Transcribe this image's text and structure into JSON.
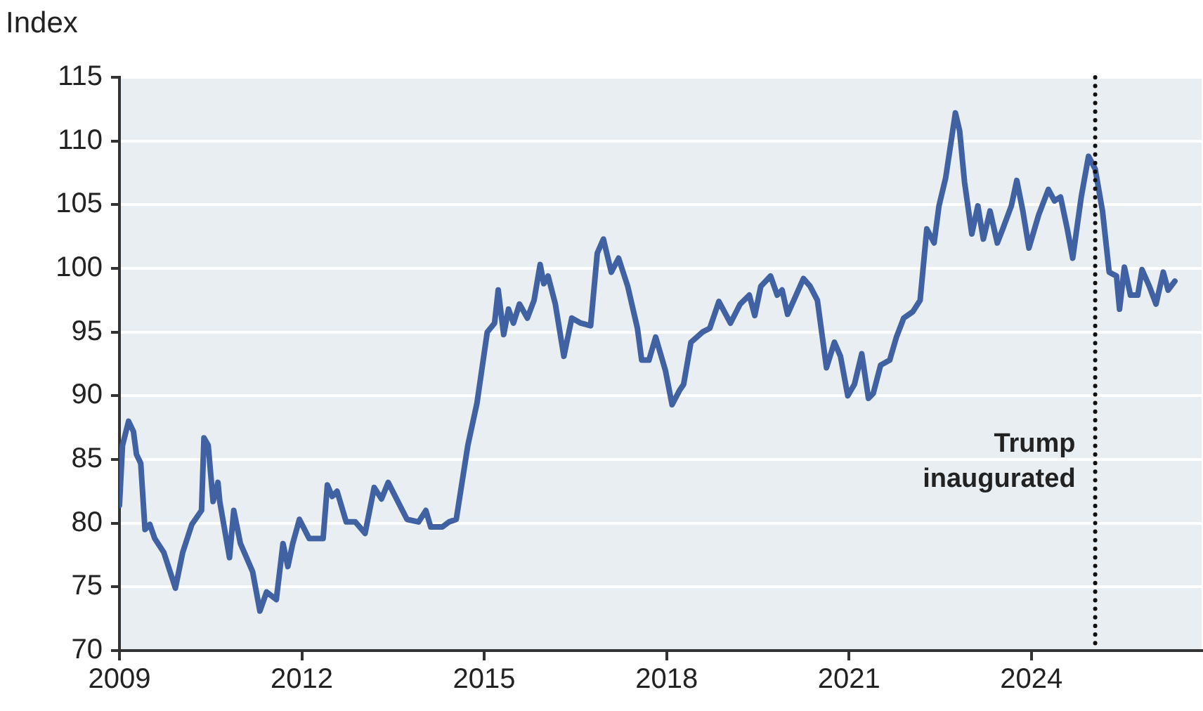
{
  "chart_data": {
    "type": "line",
    "ylabel": "Index",
    "series": [
      {
        "color": "#4062a3",
        "x": [
          2009.0,
          2009.05,
          2009.15,
          2009.23,
          2009.28,
          2009.35,
          2009.42,
          2009.5,
          2009.58,
          2009.73,
          2009.88,
          2009.92,
          2010.04,
          2010.19,
          2010.35,
          2010.39,
          2010.46,
          2010.54,
          2010.62,
          2010.65,
          2010.81,
          2010.88,
          2010.99,
          2011.19,
          2011.31,
          2011.42,
          2011.58,
          2011.69,
          2011.77,
          2011.85,
          2011.96,
          2012.12,
          2012.35,
          2012.42,
          2012.5,
          2012.58,
          2012.73,
          2012.88,
          2013.04,
          2013.19,
          2013.31,
          2013.42,
          2013.58,
          2013.73,
          2013.92,
          2014.04,
          2014.12,
          2014.31,
          2014.42,
          2014.54,
          2014.73,
          2014.88,
          2015.05,
          2015.17,
          2015.23,
          2015.32,
          2015.4,
          2015.48,
          2015.58,
          2015.71,
          2015.82,
          2015.92,
          2015.98,
          2016.05,
          2016.17,
          2016.31,
          2016.44,
          2016.59,
          2016.75,
          2016.86,
          2016.96,
          2017.09,
          2017.21,
          2017.36,
          2017.52,
          2017.59,
          2017.71,
          2017.82,
          2017.98,
          2018.09,
          2018.21,
          2018.28,
          2018.4,
          2018.59,
          2018.71,
          2018.86,
          2019.05,
          2019.21,
          2019.36,
          2019.45,
          2019.55,
          2019.71,
          2019.82,
          2019.9,
          2019.99,
          2020.25,
          2020.36,
          2020.48,
          2020.63,
          2020.76,
          2020.86,
          2020.98,
          2021.09,
          2021.21,
          2021.32,
          2021.4,
          2021.52,
          2021.67,
          2021.78,
          2021.9,
          2022.05,
          2022.17,
          2022.28,
          2022.4,
          2022.48,
          2022.59,
          2022.75,
          2022.82,
          2022.9,
          2023.02,
          2023.12,
          2023.21,
          2023.32,
          2023.44,
          2023.53,
          2023.67,
          2023.76,
          2023.86,
          2023.96,
          2024.12,
          2024.28,
          2024.38,
          2024.48,
          2024.59,
          2024.68,
          2024.82,
          2024.94,
          2025.05,
          2025.17,
          2025.28,
          2025.4,
          2025.45,
          2025.53,
          2025.63,
          2025.75,
          2025.82,
          2025.94,
          2026.05,
          2026.17,
          2026.25,
          2026.36
        ],
        "values": [
          81.4,
          86.1,
          88,
          87.2,
          85.4,
          84.7,
          79.5,
          79.9,
          78.8,
          77.7,
          75.5,
          74.9,
          77.7,
          79.9,
          81,
          86.7,
          86.1,
          81.7,
          83.2,
          81.7,
          77.3,
          81,
          78.4,
          76.2,
          73.1,
          74.6,
          74,
          78.4,
          76.6,
          78.4,
          80.3,
          78.8,
          78.8,
          83,
          82.1,
          82.5,
          80.1,
          80.1,
          79.2,
          82.8,
          81.9,
          83.2,
          81.7,
          80.3,
          80.1,
          81,
          79.7,
          79.7,
          80.1,
          80.3,
          86.1,
          89.4,
          95,
          95.7,
          98.3,
          94.8,
          96.8,
          95.7,
          97.2,
          96.1,
          97.5,
          100.3,
          98.8,
          99.4,
          97.2,
          93.1,
          96.1,
          95.7,
          95.5,
          101.2,
          102.3,
          99.7,
          100.8,
          98.6,
          95.3,
          92.8,
          92.8,
          94.6,
          92,
          89.3,
          90.4,
          90.9,
          94.2,
          95,
          95.3,
          97.4,
          95.7,
          97.2,
          97.9,
          96.3,
          98.6,
          99.4,
          97.9,
          98.3,
          96.4,
          99.2,
          98.6,
          97.5,
          92.2,
          94.2,
          93.1,
          90,
          90.9,
          93.3,
          89.8,
          90.2,
          92.4,
          92.8,
          94.6,
          96.1,
          96.6,
          97.5,
          103.1,
          102,
          104.9,
          107.1,
          112.2,
          110.8,
          106.8,
          102.7,
          104.9,
          102.3,
          104.5,
          102,
          103.1,
          104.9,
          106.9,
          104.5,
          101.6,
          104.2,
          106.2,
          105.3,
          105.6,
          103.1,
          100.8,
          105.6,
          108.8,
          107.8,
          104.5,
          99.7,
          99.4,
          96.8,
          100.1,
          97.9,
          97.9,
          99.9,
          98.6,
          97.2,
          99.7,
          98.3,
          99
        ]
      }
    ],
    "xlim": [
      2009,
      2026.8
    ],
    "xticks": [
      2009,
      2012,
      2015,
      2018,
      2021,
      2024
    ],
    "ylim": [
      70,
      115
    ],
    "yticks": [
      70,
      75,
      80,
      85,
      90,
      95,
      100,
      105,
      110,
      115
    ],
    "grid": "y",
    "legend": false,
    "marker": "none",
    "line_style": "solid",
    "ref_lines": [
      {
        "axis": "x",
        "value": 2025.05,
        "label": "Trump inaugurated",
        "color": "#111111",
        "line_style": "dotted"
      }
    ]
  }
}
